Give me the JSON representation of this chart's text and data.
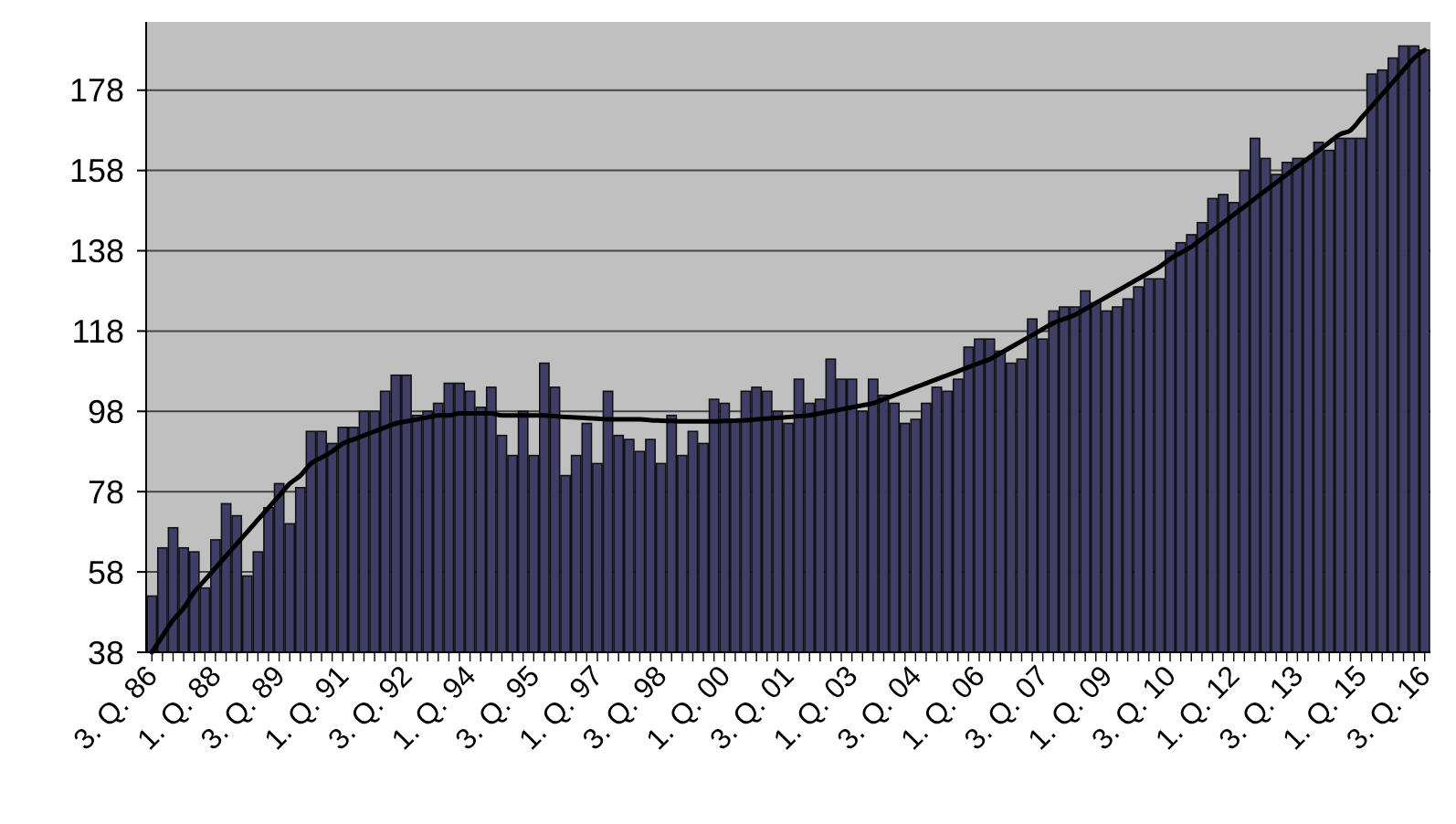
{
  "chart_data": {
    "type": "bar",
    "categories": [
      "3. Q. 86",
      null,
      null,
      null,
      null,
      null,
      "1. Q. 88",
      null,
      null,
      null,
      null,
      null,
      "3. Q. 89",
      null,
      null,
      null,
      null,
      null,
      "1. Q. 91",
      null,
      null,
      null,
      null,
      null,
      "3. Q. 92",
      null,
      null,
      null,
      null,
      null,
      "1. Q. 94",
      null,
      null,
      null,
      null,
      null,
      "3. Q. 95",
      null,
      null,
      null,
      null,
      null,
      "1. Q. 97",
      null,
      null,
      null,
      null,
      null,
      "3. Q. 98",
      null,
      null,
      null,
      null,
      null,
      "1. Q. 00",
      null,
      null,
      null,
      null,
      null,
      "3. Q. 01",
      null,
      null,
      null,
      null,
      null,
      "1. Q. 03",
      null,
      null,
      null,
      null,
      null,
      "3. Q. 04",
      null,
      null,
      null,
      null,
      null,
      "1. Q. 06",
      null,
      null,
      null,
      null,
      null,
      "3. Q. 07",
      null,
      null,
      null,
      null,
      null,
      "1. Q. 09",
      null,
      null,
      null,
      null,
      null,
      "3. Q. 10",
      null,
      null,
      null,
      null,
      null,
      "1. Q. 12",
      null,
      null,
      null,
      null,
      null,
      "3. Q. 13",
      null,
      null,
      null,
      null,
      null,
      "1. Q. 15",
      null,
      null,
      null,
      null,
      null,
      "3. Q. 16"
    ],
    "series": [
      {
        "color": "#3e3e66",
        "values": [
          52,
          64,
          69,
          64,
          63,
          54,
          66,
          75,
          72,
          57,
          63,
          74,
          80,
          70,
          79,
          93,
          93,
          90,
          94,
          94,
          98,
          98,
          103,
          107,
          107,
          97,
          98,
          100,
          105,
          105,
          103,
          99,
          104,
          92,
          87,
          98,
          87,
          110,
          104,
          82,
          87,
          95,
          85,
          103,
          92,
          91,
          88,
          91,
          85,
          97,
          87,
          93,
          90,
          101,
          100,
          96,
          103,
          104,
          103,
          98,
          95,
          106,
          100,
          101,
          111,
          106,
          106,
          98,
          106,
          102,
          100,
          95,
          96,
          100,
          104,
          103,
          106,
          114,
          116,
          116,
          113,
          110,
          111,
          121,
          116,
          123,
          124,
          124,
          128,
          125,
          123,
          124,
          126,
          129,
          131,
          131,
          138,
          140,
          142,
          145,
          151,
          152,
          150,
          158,
          166,
          161,
          157,
          160,
          161,
          161,
          165,
          163,
          166,
          166,
          166,
          182,
          183,
          186,
          189,
          189,
          188
        ]
      },
      {
        "type": "line",
        "color": "#000000",
        "values": [
          38,
          42,
          46,
          49,
          53,
          56,
          59,
          62,
          65,
          68,
          71,
          74,
          77,
          80,
          82,
          85,
          86.5,
          88,
          90,
          91,
          92,
          93,
          94,
          95,
          95.5,
          96,
          96.5,
          97,
          97,
          97.5,
          97.5,
          97.5,
          97.5,
          97,
          97,
          97,
          97,
          97,
          96.8,
          96.6,
          96.5,
          96.3,
          96.2,
          96,
          96,
          96,
          96,
          95.8,
          95.7,
          95.6,
          95.5,
          95.5,
          95.5,
          95.5,
          95.6,
          95.7,
          95.8,
          96,
          96.2,
          96.4,
          96.6,
          96.8,
          97,
          97.5,
          98,
          98.5,
          99,
          99.5,
          100,
          101,
          102,
          103,
          104,
          105,
          106,
          107,
          108,
          109,
          110,
          111,
          112.5,
          114,
          115.5,
          117,
          118.5,
          120,
          121,
          122,
          123.5,
          125,
          126.5,
          128,
          129.5,
          131,
          132.5,
          134,
          136,
          137.5,
          139,
          141,
          143,
          145,
          147,
          149,
          151,
          153,
          155,
          157,
          159,
          161,
          163,
          165,
          167,
          168,
          171,
          174,
          177,
          180,
          183,
          186,
          188
        ]
      }
    ],
    "ylim": [
      38,
      195
    ],
    "yticks": [
      38,
      58,
      78,
      98,
      118,
      138,
      158,
      178
    ],
    "grid": "y"
  }
}
